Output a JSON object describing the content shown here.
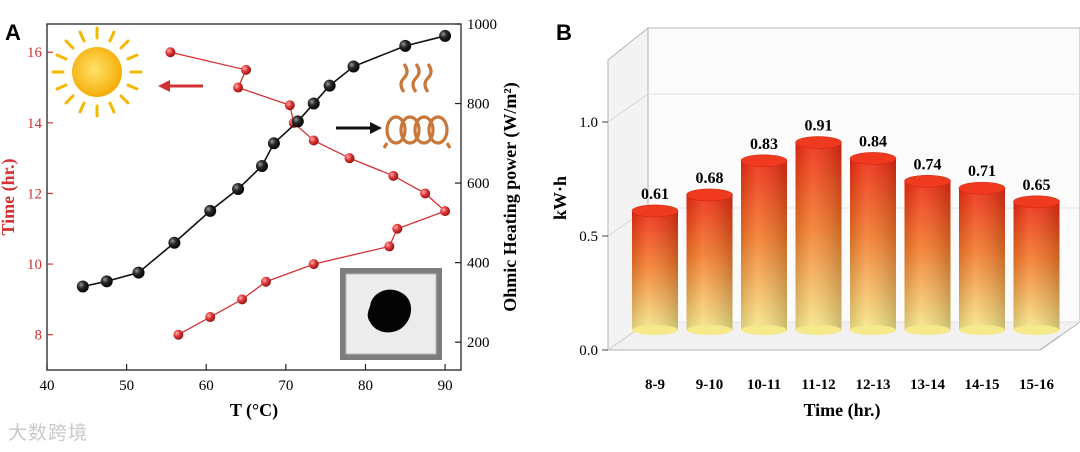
{
  "watermark": "大数跨境",
  "colors": {
    "red": "#d43232",
    "black": "#111111",
    "sun": "#f5b800",
    "coil": "#c8783a"
  },
  "chart_data": [
    {
      "panel": "A",
      "type": "line",
      "xlabel": "T (°C)",
      "ylabel_left": "Time (hr.)",
      "ylabel_right": "Ohmic Heating power (W/m²)",
      "xlim": [
        40,
        92
      ],
      "xticks": [
        "40",
        "50",
        "60",
        "70",
        "80",
        "90"
      ],
      "ylim_left": [
        7,
        16.8
      ],
      "yticks_left": [
        "8",
        "10",
        "12",
        "14",
        "16"
      ],
      "ylim_right": [
        130,
        1000
      ],
      "yticks_right": [
        "200",
        "400",
        "600",
        "800",
        "1000"
      ],
      "series": [
        {
          "axis": "left",
          "color": "#d43232",
          "points": [
            [
              56.5,
              8.0
            ],
            [
              60.5,
              8.5
            ],
            [
              64.5,
              9.0
            ],
            [
              67.5,
              9.5
            ],
            [
              73.5,
              10.0
            ],
            [
              83.0,
              10.5
            ],
            [
              84.0,
              11.0
            ],
            [
              90.0,
              11.5
            ],
            [
              87.5,
              12.0
            ],
            [
              83.5,
              12.5
            ],
            [
              78.0,
              13.0
            ],
            [
              73.5,
              13.5
            ],
            [
              71.0,
              14.0
            ],
            [
              70.5,
              14.5
            ],
            [
              64.0,
              15.0
            ],
            [
              65.0,
              15.5
            ],
            [
              55.5,
              16.0
            ]
          ]
        },
        {
          "axis": "right",
          "color": "#111111",
          "points": [
            [
              44.5,
              340
            ],
            [
              47.5,
              353
            ],
            [
              51.5,
              375
            ],
            [
              56.0,
              450
            ],
            [
              60.5,
              530
            ],
            [
              64.0,
              585
            ],
            [
              67.0,
              643
            ],
            [
              68.5,
              700
            ],
            [
              71.5,
              755
            ],
            [
              73.5,
              800
            ],
            [
              75.5,
              845
            ],
            [
              78.5,
              893
            ],
            [
              85.0,
              945
            ],
            [
              90.0,
              970
            ]
          ]
        }
      ]
    },
    {
      "panel": "B",
      "type": "bar",
      "xlabel": "Time (hr.)",
      "ylabel": "kW·h",
      "ylim": [
        0,
        1.25
      ],
      "yticks": [
        "0.0",
        "0.5",
        "1.0"
      ],
      "categories": [
        "8-9",
        "9-10",
        "10-11",
        "11-12",
        "12-13",
        "13-14",
        "14-15",
        "15-16"
      ],
      "values": [
        0.61,
        0.68,
        0.83,
        0.91,
        0.84,
        0.74,
        0.71,
        0.65
      ],
      "value_labels": [
        "0.61",
        "0.68",
        "0.83",
        "0.91",
        "0.84",
        "0.74",
        "0.71",
        "0.65"
      ]
    }
  ]
}
